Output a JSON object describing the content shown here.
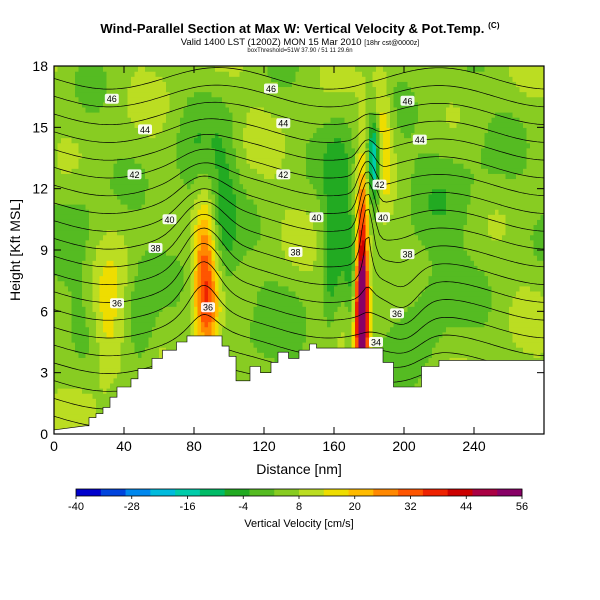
{
  "header": {
    "title": "Wind-Parallel Section at Max W: Vertical Velocity & Pot.Temp.",
    "title_mark": "(C)",
    "subtitle": "Valid 1400 LST (1200Z) MON 15 Mar 2010",
    "subtitle_tag": "[18hr cst@0000z]",
    "subtitle2": "boxThreshold=51W 37.90 / 51 11 29.6n"
  },
  "chart_data": {
    "type": "heatmap",
    "xlabel": "Distance [nm]",
    "ylabel": "Height [Kft MSL]",
    "xlim": [
      0,
      280
    ],
    "ylim": [
      0,
      18
    ],
    "xticks": [
      0,
      40,
      80,
      120,
      160,
      200,
      240
    ],
    "yticks": [
      0,
      3,
      6,
      9,
      12,
      15,
      18
    ],
    "colorbar": {
      "label": "Vertical Velocity [cm/s]",
      "ticks": [
        -40,
        -28,
        -16,
        -4,
        8,
        20,
        32,
        44,
        56
      ],
      "range": [
        -40,
        56
      ],
      "colors": [
        "#0000cc",
        "#0044dd",
        "#0088ee",
        "#00bbdd",
        "#00ccaa",
        "#00bb66",
        "#22aa22",
        "#55bb22",
        "#88cc22",
        "#bbdd22",
        "#eedd00",
        "#ffbb00",
        "#ff8800",
        "#ff5500",
        "#ee2200",
        "#cc0000",
        "#aa0044",
        "#880066"
      ]
    },
    "background_velocity": 6,
    "velocity_features": [
      {
        "x": 86,
        "y": 8.5,
        "peak": 22,
        "sx": 4.5,
        "sy": 2.6
      },
      {
        "x": 88,
        "y": 5.5,
        "peak": 14,
        "sx": 5,
        "sy": 2.0
      },
      {
        "x": 176,
        "y": 8.0,
        "peak": 42,
        "sx": 2.5,
        "sy": 3.2
      },
      {
        "x": 176,
        "y": 5.5,
        "peak": 30,
        "sx": 3.0,
        "sy": 2.0
      },
      {
        "x": 186,
        "y": 14.5,
        "peak": 20,
        "sx": 4.5,
        "sy": 2.0
      },
      {
        "x": 183,
        "y": 13.5,
        "peak": -40,
        "sx": 2.8,
        "sy": 1.6
      },
      {
        "x": 82,
        "y": 12.5,
        "peak": -10,
        "sx": 10,
        "sy": 2.0
      },
      {
        "x": 98,
        "y": 10.5,
        "peak": -9,
        "sx": 5,
        "sy": 3.0
      },
      {
        "x": 164,
        "y": 12.0,
        "peak": -10,
        "sx": 7,
        "sy": 3.0
      },
      {
        "x": 158,
        "y": 7.5,
        "peak": -8,
        "sx": 3.5,
        "sy": 3.0
      },
      {
        "x": 170,
        "y": 6.5,
        "peak": -7,
        "sx": 2.5,
        "sy": 2.5
      },
      {
        "x": 50,
        "y": 5.0,
        "peak": -9,
        "sx": 6,
        "sy": 2.5
      },
      {
        "x": 120,
        "y": 5.0,
        "peak": -4,
        "sx": 20,
        "sy": 2.0
      },
      {
        "x": 230,
        "y": 12.0,
        "peak": -5,
        "sx": 20,
        "sy": 3.0
      },
      {
        "x": 212,
        "y": 6.0,
        "peak": -8,
        "sx": 10,
        "sy": 2.0
      },
      {
        "x": 15,
        "y": 10.0,
        "peak": -5,
        "sx": 10,
        "sy": 3.0
      },
      {
        "x": 30,
        "y": 5.5,
        "peak": 12,
        "sx": 6,
        "sy": 2.0
      }
    ],
    "terrain": [
      [
        0,
        0.2
      ],
      [
        18,
        0.4
      ],
      [
        20,
        0.4
      ],
      [
        20,
        0.8
      ],
      [
        24,
        0.8
      ],
      [
        24,
        1.0
      ],
      [
        28,
        1.0
      ],
      [
        28,
        1.3
      ],
      [
        32,
        1.3
      ],
      [
        32,
        1.8
      ],
      [
        36,
        1.8
      ],
      [
        36,
        2.3
      ],
      [
        44,
        2.3
      ],
      [
        44,
        2.7
      ],
      [
        48,
        2.7
      ],
      [
        48,
        3.2
      ],
      [
        56,
        3.2
      ],
      [
        56,
        3.7
      ],
      [
        62,
        3.7
      ],
      [
        62,
        4.1
      ],
      [
        70,
        4.1
      ],
      [
        70,
        4.5
      ],
      [
        76,
        4.5
      ],
      [
        76,
        4.8
      ],
      [
        96,
        4.8
      ],
      [
        96,
        4.3
      ],
      [
        100,
        4.3
      ],
      [
        100,
        3.8
      ],
      [
        104,
        3.8
      ],
      [
        104,
        2.6
      ],
      [
        112,
        2.6
      ],
      [
        112,
        3.3
      ],
      [
        118,
        3.3
      ],
      [
        118,
        3.0
      ],
      [
        124,
        3.0
      ],
      [
        124,
        3.5
      ],
      [
        128,
        3.5
      ],
      [
        128,
        4.0
      ],
      [
        134,
        4.0
      ],
      [
        134,
        3.7
      ],
      [
        140,
        3.7
      ],
      [
        140,
        4.1
      ],
      [
        146,
        4.1
      ],
      [
        146,
        4.4
      ],
      [
        150,
        4.4
      ],
      [
        150,
        4.2
      ],
      [
        188,
        4.2
      ],
      [
        188,
        3.5
      ],
      [
        194,
        3.5
      ],
      [
        194,
        2.3
      ],
      [
        210,
        2.3
      ],
      [
        210,
        3.3
      ],
      [
        220,
        3.3
      ],
      [
        220,
        3.6
      ],
      [
        280,
        3.6
      ]
    ],
    "isentropes": {
      "levels": [
        29,
        30,
        31,
        32,
        33,
        34,
        35,
        36,
        37,
        38,
        39,
        40,
        41,
        42,
        43,
        44,
        45,
        46,
        47,
        48
      ],
      "labels": [
        {
          "x": 36,
          "y": 6.4,
          "text": "36"
        },
        {
          "x": 88,
          "y": 6.2,
          "text": "36"
        },
        {
          "x": 58,
          "y": 9.1,
          "text": "38"
        },
        {
          "x": 138,
          "y": 8.9,
          "text": "38"
        },
        {
          "x": 202,
          "y": 8.8,
          "text": "38"
        },
        {
          "x": 196,
          "y": 5.9,
          "text": "36"
        },
        {
          "x": 184,
          "y": 4.5,
          "text": "34"
        },
        {
          "x": 66,
          "y": 10.5,
          "text": "40"
        },
        {
          "x": 150,
          "y": 10.6,
          "text": "40"
        },
        {
          "x": 188,
          "y": 10.6,
          "text": "40"
        },
        {
          "x": 46,
          "y": 12.7,
          "text": "42"
        },
        {
          "x": 131,
          "y": 12.7,
          "text": "42"
        },
        {
          "x": 186,
          "y": 12.2,
          "text": "42"
        },
        {
          "x": 52,
          "y": 14.9,
          "text": "44"
        },
        {
          "x": 131,
          "y": 15.2,
          "text": "44"
        },
        {
          "x": 209,
          "y": 14.4,
          "text": "44"
        },
        {
          "x": 33,
          "y": 16.4,
          "text": "46"
        },
        {
          "x": 124,
          "y": 16.9,
          "text": "46"
        },
        {
          "x": 202,
          "y": 16.3,
          "text": "46"
        }
      ]
    }
  }
}
